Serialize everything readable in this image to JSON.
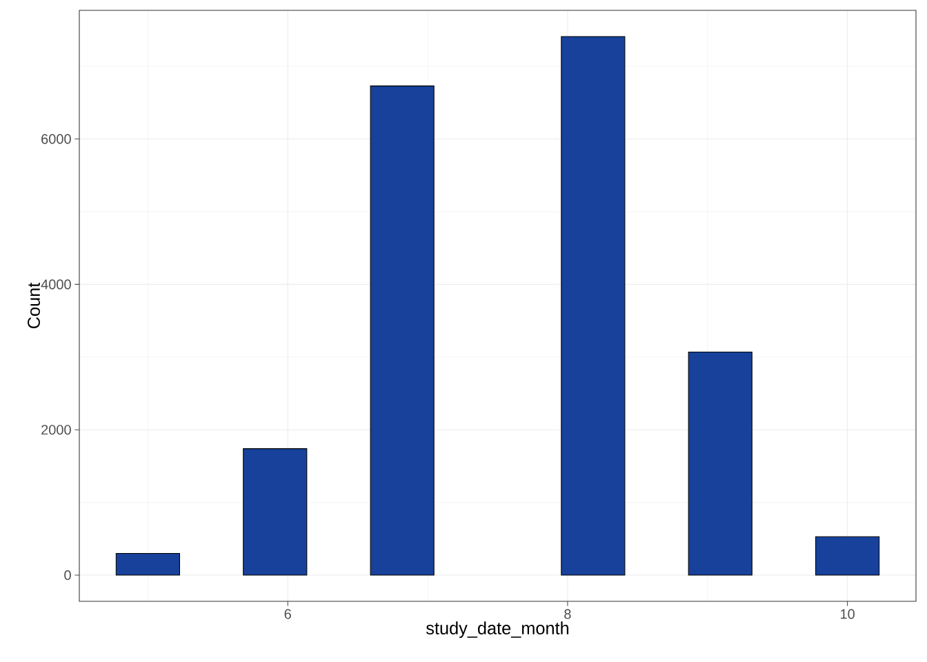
{
  "chart_data": {
    "type": "histogram",
    "xlabel": "study_date_month",
    "ylabel": "Count",
    "bins": [
      4.773,
      5.227,
      5.682,
      6.136,
      6.591,
      7.045,
      7.5,
      7.955,
      8.409,
      8.864,
      9.318,
      9.773,
      10.227
    ],
    "values": [
      300,
      0,
      1740,
      0,
      6730,
      0,
      0,
      7410,
      0,
      3070,
      0,
      530
    ],
    "color": "#17419a",
    "xlim": [
      4.51,
      10.49
    ],
    "ylim": [
      -360,
      7770
    ],
    "xticks": [
      6,
      8,
      10
    ],
    "yticks": [
      0,
      2000,
      4000,
      6000
    ],
    "grid": true
  }
}
